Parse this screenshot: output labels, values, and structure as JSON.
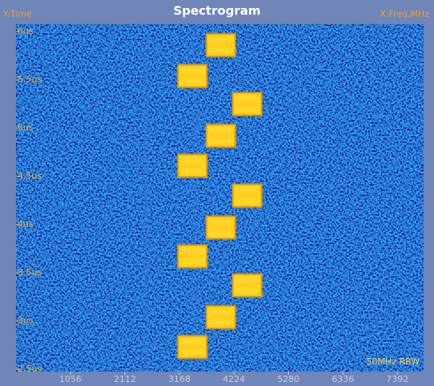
{
  "chart_data": {
    "type": "spectrogram",
    "title": "Spectrogram",
    "y_label": "Y:Time",
    "x_label": "X:Freq,MHz",
    "annotation": "50MHz RBW",
    "x": [
      3970,
      3420,
      4480,
      3970,
      3420,
      4480,
      3970,
      3420,
      4480,
      3970,
      3420
    ],
    "values": [
      5.86,
      5.54,
      5.25,
      4.92,
      4.61,
      4.3,
      3.97,
      3.67,
      3.37,
      3.04,
      2.73
    ],
    "color": "#ffd21f",
    "xlim": [
      0,
      7900
    ],
    "ylim": [
      2.5,
      6.08
    ],
    "xticks": [
      1056,
      2112,
      3168,
      4224,
      5280,
      6336,
      7392
    ],
    "yticks": [
      {
        "value": 2.5,
        "label": "2.5us"
      },
      {
        "value": 3,
        "label": "3us"
      },
      {
        "value": 3.5,
        "label": "3.5us"
      },
      {
        "value": 4,
        "label": "4us"
      },
      {
        "value": 4.5,
        "label": "4.5us"
      },
      {
        "value": 5,
        "label": "5us"
      },
      {
        "value": 5.5,
        "label": "5.5us"
      },
      {
        "value": 6,
        "label": "6us"
      }
    ]
  }
}
